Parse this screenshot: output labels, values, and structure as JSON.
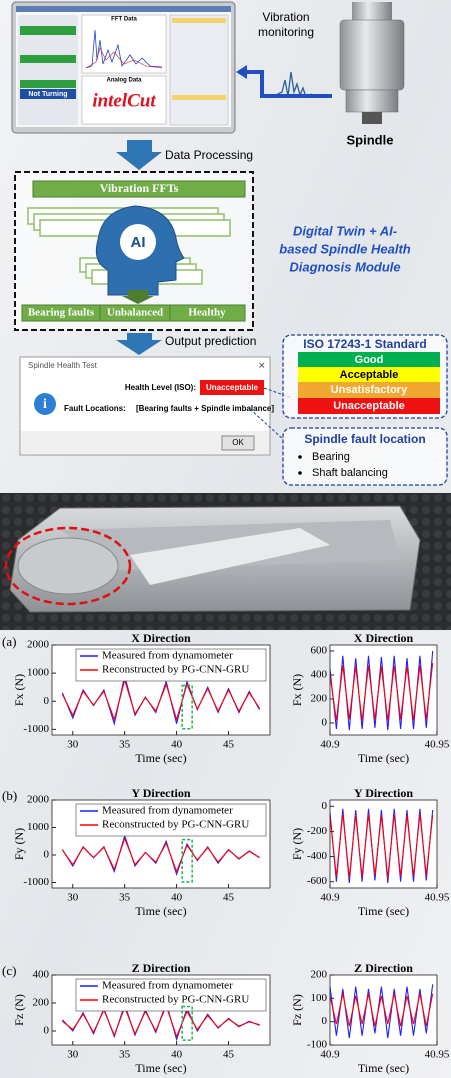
{
  "diagram": {
    "monitor": {
      "fft_title": "FFT Data",
      "analog_title": "Analog Data",
      "brand": "intelCut",
      "status": "Not Turning"
    },
    "vibration_label": [
      "Vibration",
      "monitoring"
    ],
    "spindle_label": "Spindle",
    "step1": "Data Processing",
    "module": {
      "input": "Vibration FFTs",
      "core": "AI",
      "outputs": [
        "Bearing faults",
        "Unbalanced",
        "Healthy"
      ]
    },
    "module_title": [
      "Digital Twin + AI-",
      "based Spindle Health",
      "Diagnosis Module"
    ],
    "step2": "Output prediction",
    "dialog": {
      "title": "Spindle Health Test",
      "health_label": "Health Level (ISO):",
      "health_value": "Unacceptable",
      "fault_label": "Fault Locations:",
      "fault_value": "[Bearing faults + Spindle imbalance]",
      "button": "OK"
    },
    "iso": {
      "title": "ISO 17243-1 Standard",
      "levels": [
        "Good",
        "Acceptable",
        "Unsatisfactory",
        "Unacceptable"
      ]
    },
    "faults": {
      "title": "Spindle fault location",
      "items": [
        "Bearing",
        "Shaft balancing"
      ]
    }
  },
  "panel_labels": [
    "(a)",
    "(b)",
    "(c)"
  ],
  "chart_data": [
    {
      "type": "line",
      "title": "X Direction",
      "xlabel": "Time (sec)",
      "ylabel": "Fx (N)",
      "x": [
        29,
        30,
        31,
        32,
        33,
        34,
        35,
        36,
        37,
        38,
        39,
        40,
        41,
        42,
        43,
        44,
        45,
        46,
        47,
        48
      ],
      "series": [
        {
          "name": "Measured from dynamometer",
          "color": "#1f1fff",
          "values": [
            300,
            -600,
            400,
            -150,
            400,
            -800,
            900,
            -500,
            150,
            -400,
            700,
            -800,
            700,
            -300,
            500,
            -400,
            450,
            -400,
            350,
            -300
          ]
        },
        {
          "name": "Reconstructed by PG-CNN-GRU",
          "color": "#ff0000",
          "values": [
            250,
            -500,
            350,
            -130,
            350,
            -650,
            750,
            -450,
            130,
            -350,
            600,
            -650,
            600,
            -280,
            450,
            -350,
            400,
            -350,
            300,
            -250
          ]
        }
      ],
      "xlim": [
        28,
        49
      ],
      "ylim": [
        -1200,
        2000
      ],
      "xticks": [
        30,
        35,
        40,
        45
      ],
      "yticks": [
        -1000,
        0,
        1000,
        2000
      ]
    },
    {
      "type": "line",
      "title": "X Direction",
      "xlabel": "Time (sec)",
      "ylabel": "Fx (N)",
      "x": [
        40.9,
        40.903,
        40.906,
        40.909,
        40.912,
        40.915,
        40.918,
        40.921,
        40.924,
        40.927,
        40.93,
        40.933,
        40.936,
        40.939,
        40.942,
        40.945,
        40.948
      ],
      "series": [
        {
          "color": "#1f1fff",
          "values": [
            450,
            -50,
            560,
            -60,
            540,
            -50,
            560,
            -40,
            550,
            -60,
            560,
            -50,
            540,
            -50,
            560,
            -40,
            600
          ]
        },
        {
          "color": "#ff0000",
          "values": [
            400,
            20,
            480,
            30,
            470,
            20,
            480,
            30,
            470,
            20,
            480,
            30,
            470,
            20,
            480,
            30,
            500
          ]
        }
      ],
      "xlim": [
        40.9,
        40.95
      ],
      "ylim": [
        -100,
        650
      ],
      "xticks": [
        40.9,
        40.95
      ],
      "yticks": [
        0,
        200,
        400,
        600
      ]
    },
    {
      "type": "line",
      "title": "Y Direction",
      "xlabel": "Time (sec)",
      "ylabel": "Fy (N)",
      "x": [
        29,
        30,
        31,
        32,
        33,
        34,
        35,
        36,
        37,
        38,
        39,
        40,
        41,
        42,
        43,
        44,
        45,
        46,
        47,
        48
      ],
      "series": [
        {
          "name": "Measured from dynamometer",
          "color": "#1f1fff",
          "values": [
            200,
            -400,
            300,
            -100,
            300,
            -600,
            700,
            -400,
            100,
            -300,
            500,
            -700,
            400,
            -200,
            300,
            -300,
            200,
            -150,
            150,
            -100
          ]
        },
        {
          "name": "Reconstructed by PG-CNN-GRU",
          "color": "#ff0000",
          "values": [
            180,
            -350,
            280,
            -90,
            280,
            -520,
            600,
            -350,
            90,
            -260,
            430,
            -600,
            350,
            -180,
            270,
            -260,
            180,
            -130,
            130,
            -90
          ]
        }
      ],
      "xlim": [
        28,
        49
      ],
      "ylim": [
        -1200,
        2000
      ],
      "xticks": [
        30,
        35,
        40,
        45
      ],
      "yticks": [
        -1000,
        0,
        1000,
        2000
      ]
    },
    {
      "type": "line",
      "title": "Y Direction",
      "xlabel": "Time (sec)",
      "ylabel": "Fy (N)",
      "x": [
        40.9,
        40.903,
        40.906,
        40.909,
        40.912,
        40.915,
        40.918,
        40.921,
        40.924,
        40.927,
        40.93,
        40.933,
        40.936,
        40.939,
        40.942,
        40.945,
        40.948
      ],
      "series": [
        {
          "color": "#1f1fff",
          "values": [
            -50,
            -600,
            -20,
            -610,
            -30,
            -600,
            -20,
            -590,
            -30,
            -610,
            -20,
            -600,
            -30,
            -600,
            -20,
            -590,
            -30
          ]
        },
        {
          "color": "#ff0000",
          "values": [
            -80,
            -560,
            -60,
            -570,
            -70,
            -560,
            -60,
            -550,
            -70,
            -570,
            -60,
            -560,
            -70,
            -560,
            -60,
            -550,
            -70
          ]
        }
      ],
      "xlim": [
        40.9,
        40.95
      ],
      "ylim": [
        -650,
        50
      ],
      "xticks": [
        40.9,
        40.95
      ],
      "yticks": [
        -600,
        -400,
        -200,
        0
      ]
    },
    {
      "type": "line",
      "title": "Z Direction",
      "xlabel": "Time (sec)",
      "ylabel": "Fz (N)",
      "x": [
        29,
        30,
        31,
        32,
        33,
        34,
        35,
        36,
        37,
        38,
        39,
        40,
        41,
        42,
        43,
        44,
        45,
        46,
        47,
        48
      ],
      "series": [
        {
          "name": "Measured from dynamometer",
          "color": "#1f1fff",
          "values": [
            80,
            0,
            130,
            -20,
            160,
            -40,
            190,
            -30,
            150,
            -10,
            200,
            -60,
            160,
            0,
            120,
            20,
            90,
            30,
            70,
            40
          ]
        },
        {
          "name": "Reconstructed by PG-CNN-GRU",
          "color": "#ff0000",
          "values": [
            70,
            10,
            120,
            -10,
            150,
            -30,
            170,
            -20,
            140,
            0,
            180,
            -40,
            140,
            10,
            110,
            25,
            85,
            35,
            65,
            45
          ]
        }
      ],
      "xlim": [
        28,
        49
      ],
      "ylim": [
        -100,
        400
      ],
      "xticks": [
        30,
        35,
        40,
        45
      ],
      "yticks": [
        0,
        200,
        400
      ]
    },
    {
      "type": "line",
      "title": "Z Direction",
      "xlabel": "Time (sec)",
      "ylabel": "Fz (N)",
      "x": [
        40.9,
        40.903,
        40.906,
        40.909,
        40.912,
        40.915,
        40.918,
        40.921,
        40.924,
        40.927,
        40.93,
        40.933,
        40.936,
        40.939,
        40.942,
        40.945,
        40.948
      ],
      "series": [
        {
          "color": "#1f1fff",
          "values": [
            150,
            -60,
            140,
            -70,
            150,
            -60,
            140,
            -50,
            150,
            -70,
            140,
            -60,
            150,
            -60,
            140,
            -50,
            160
          ]
        },
        {
          "color": "#ff0000",
          "values": [
            110,
            -10,
            120,
            -20,
            110,
            -10,
            120,
            -20,
            110,
            -10,
            120,
            -20,
            110,
            -10,
            120,
            -20,
            120
          ]
        }
      ],
      "xlim": [
        40.9,
        40.95
      ],
      "ylim": [
        -100,
        200
      ],
      "xticks": [
        40.9,
        40.95
      ],
      "yticks": [
        -100,
        0,
        100,
        200
      ]
    }
  ]
}
